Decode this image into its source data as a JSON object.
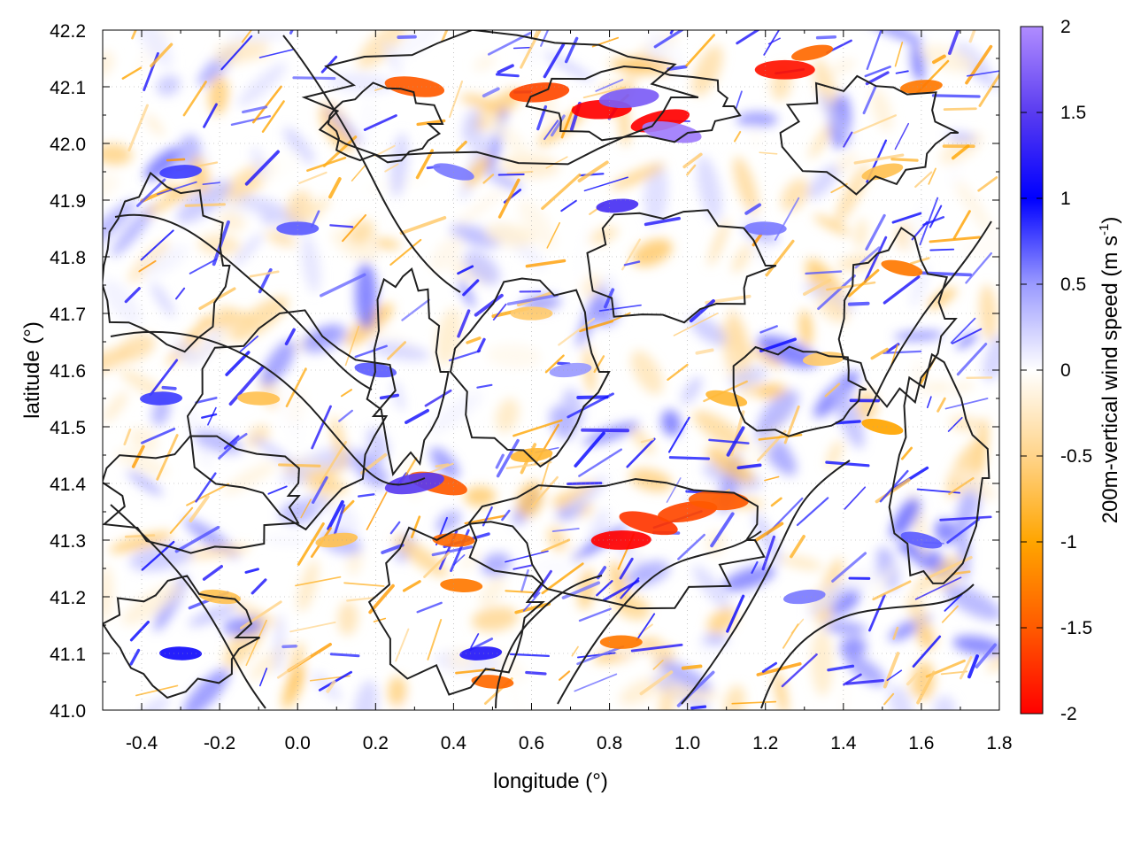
{
  "chart_data": {
    "type": "heatmap",
    "xlabel": "longitude (°)",
    "ylabel": "latitude (°)",
    "colorbar_label": "200m-vertical wind speed (m s-1)",
    "colorbar_label_main": "200m-vertical wind speed (m s",
    "colorbar_label_sup": "-1",
    "colorbar_label_end": ")",
    "xlim": [
      -0.5,
      1.8
    ],
    "ylim": [
      41.0,
      42.2
    ],
    "zlim": [
      -2,
      2
    ],
    "x_ticks": [
      "-0.4",
      "-0.2",
      "0.0",
      "0.2",
      "0.4",
      "0.6",
      "0.8",
      "1.0",
      "1.2",
      "1.4",
      "1.6",
      "1.8"
    ],
    "x_tick_values": [
      -0.4,
      -0.2,
      0.0,
      0.2,
      0.4,
      0.6,
      0.8,
      1.0,
      1.2,
      1.4,
      1.6,
      1.8
    ],
    "y_ticks": [
      "41.0",
      "41.1",
      "41.2",
      "41.3",
      "41.4",
      "41.5",
      "41.6",
      "41.7",
      "41.8",
      "41.9",
      "42.0",
      "42.1",
      "42.2"
    ],
    "y_tick_values": [
      41.0,
      41.1,
      41.2,
      41.3,
      41.4,
      41.5,
      41.6,
      41.7,
      41.8,
      41.9,
      42.0,
      42.1,
      42.2
    ],
    "colorbar_ticks": [
      "2",
      "1.5",
      "1",
      "0.5",
      "0",
      "-0.5",
      "-1",
      "-1.5",
      "-2"
    ],
    "colorbar_tick_values": [
      2,
      1.5,
      1,
      0.5,
      0,
      -0.5,
      -1,
      -1.5,
      -2
    ],
    "colormap": [
      {
        "value": -2,
        "color": "#ff0000"
      },
      {
        "value": -1.5,
        "color": "#ff5a00"
      },
      {
        "value": -1,
        "color": "#ffa500"
      },
      {
        "value": -0.5,
        "color": "#ffd48a"
      },
      {
        "value": 0,
        "color": "#ffffff"
      },
      {
        "value": 0.5,
        "color": "#9a9aff"
      },
      {
        "value": 1,
        "color": "#0000ff"
      },
      {
        "value": 1.5,
        "color": "#5a3cf0"
      },
      {
        "value": 2,
        "color": "#b08cff"
      }
    ],
    "grid": true,
    "contour_color": "#202020",
    "hotspots": [
      {
        "lon": 0.78,
        "lat": 42.06,
        "w": -2.0
      },
      {
        "lon": 0.93,
        "lat": 42.04,
        "w": -2.0
      },
      {
        "lon": 0.96,
        "lat": 42.02,
        "w": 1.9
      },
      {
        "lon": 0.85,
        "lat": 42.08,
        "w": 1.7
      },
      {
        "lon": 0.62,
        "lat": 42.09,
        "w": -1.6
      },
      {
        "lon": 0.3,
        "lat": 42.1,
        "w": -1.5
      },
      {
        "lon": 1.25,
        "lat": 42.13,
        "w": -1.9
      },
      {
        "lon": 1.32,
        "lat": 42.16,
        "w": -1.4
      },
      {
        "lon": 1.6,
        "lat": 42.1,
        "w": -1.3
      },
      {
        "lon": 0.83,
        "lat": 41.3,
        "w": -2.0
      },
      {
        "lon": 0.9,
        "lat": 41.33,
        "w": -1.7
      },
      {
        "lon": 1.0,
        "lat": 41.35,
        "w": -1.6
      },
      {
        "lon": 1.08,
        "lat": 41.37,
        "w": -1.5
      },
      {
        "lon": 0.36,
        "lat": 41.4,
        "w": -1.5
      },
      {
        "lon": 0.4,
        "lat": 41.3,
        "w": -1.4
      },
      {
        "lon": 0.42,
        "lat": 41.22,
        "w": -1.3
      },
      {
        "lon": 0.5,
        "lat": 41.05,
        "w": -1.4
      },
      {
        "lon": 0.83,
        "lat": 41.12,
        "w": -1.3
      },
      {
        "lon": 0.3,
        "lat": 41.4,
        "w": 1.5
      },
      {
        "lon": 0.82,
        "lat": 41.89,
        "w": 1.4
      },
      {
        "lon": 1.55,
        "lat": 41.78,
        "w": -1.3
      },
      {
        "lon": 1.5,
        "lat": 41.5,
        "w": -1.0
      },
      {
        "lon": 0.47,
        "lat": 41.1,
        "w": 1.2
      },
      {
        "lon": -0.3,
        "lat": 41.1,
        "w": 1.1
      },
      {
        "lon": -0.35,
        "lat": 41.55,
        "w": 0.8
      },
      {
        "lon": -0.1,
        "lat": 41.55,
        "w": -0.7
      },
      {
        "lon": 0.2,
        "lat": 41.6,
        "w": 0.7
      },
      {
        "lon": 0.6,
        "lat": 41.7,
        "w": -0.6
      },
      {
        "lon": 1.1,
        "lat": 41.55,
        "w": -0.8
      },
      {
        "lon": 1.35,
        "lat": 41.62,
        "w": -0.6
      },
      {
        "lon": 1.2,
        "lat": 41.85,
        "w": 0.6
      },
      {
        "lon": 0.0,
        "lat": 41.85,
        "w": 0.7
      },
      {
        "lon": -0.3,
        "lat": 41.95,
        "w": 0.8
      },
      {
        "lon": 0.1,
        "lat": 41.3,
        "w": -0.7
      },
      {
        "lon": 0.6,
        "lat": 41.45,
        "w": -0.8
      },
      {
        "lon": 1.3,
        "lat": 41.2,
        "w": 0.6
      },
      {
        "lon": 1.6,
        "lat": 41.3,
        "w": 0.7
      },
      {
        "lon": 1.5,
        "lat": 41.95,
        "w": -0.7
      },
      {
        "lon": 0.4,
        "lat": 41.95,
        "w": 0.6
      },
      {
        "lon": 0.7,
        "lat": 41.6,
        "w": 0.5
      },
      {
        "lon": -0.2,
        "lat": 41.2,
        "w": -0.7
      }
    ]
  }
}
